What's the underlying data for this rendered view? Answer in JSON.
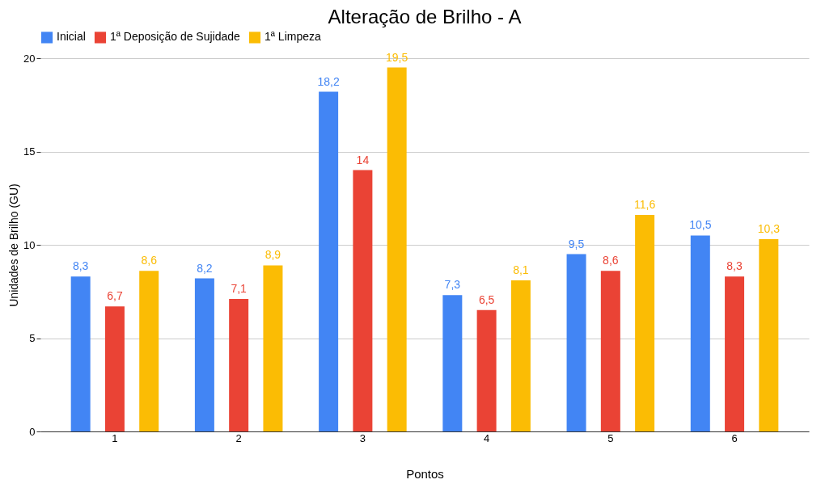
{
  "chart_data": {
    "type": "bar",
    "title": "Alteração de Brilho - A",
    "xlabel": "Pontos",
    "ylabel": "Unidades de Brilho (GU)",
    "categories": [
      "1",
      "2",
      "3",
      "4",
      "5",
      "6"
    ],
    "series": [
      {
        "name": "Inicial",
        "color": "#4285f4",
        "values": [
          8.3,
          8.2,
          18.2,
          7.3,
          9.5,
          10.5
        ],
        "value_labels": [
          "8,3",
          "8,2",
          "18,2",
          "7,3",
          "9,5",
          "10,5"
        ]
      },
      {
        "name": "1ª Deposição de Sujidade",
        "color": "#ea4335",
        "values": [
          6.7,
          7.1,
          14,
          6.5,
          8.6,
          8.3
        ],
        "value_labels": [
          "6,7",
          "7,1",
          "14",
          "6,5",
          "8,6",
          "8,3"
        ]
      },
      {
        "name": "1ª Limpeza",
        "color": "#fbbc04",
        "values": [
          8.6,
          8.9,
          19.5,
          8.1,
          11.6,
          10.3
        ],
        "value_labels": [
          "8,6",
          "8,9",
          "19,5",
          "8,1",
          "11,6",
          "10,3"
        ]
      }
    ],
    "ylim": [
      0,
      20
    ],
    "yticks": [
      0,
      5,
      10,
      15,
      20
    ],
    "grid": "y",
    "legend": "top"
  }
}
